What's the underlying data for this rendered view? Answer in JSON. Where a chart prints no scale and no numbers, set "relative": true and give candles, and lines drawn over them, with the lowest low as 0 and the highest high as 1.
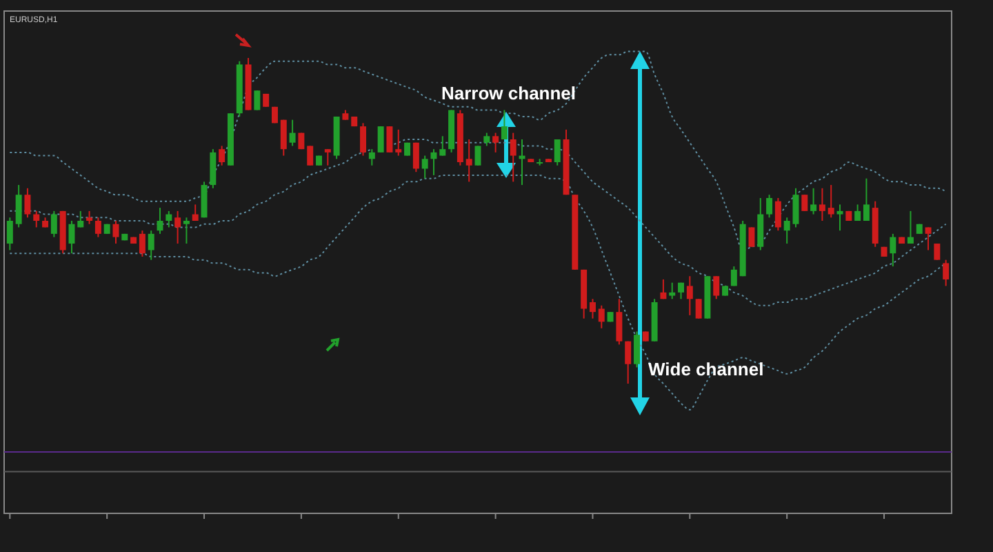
{
  "chart_data": {
    "type": "candlestick",
    "title": "EURUSD,H1",
    "relative": true,
    "legend": false,
    "grid": false,
    "line_style": "dotted",
    "categories": [
      null,
      null,
      null,
      null,
      null,
      null,
      null,
      null,
      null,
      null,
      null,
      null,
      null,
      null,
      null,
      null,
      null,
      null,
      null,
      null,
      null,
      null,
      null,
      null,
      null,
      null,
      null,
      null,
      null,
      null,
      null,
      null,
      null,
      null,
      null,
      null,
      null,
      null,
      null,
      null,
      null,
      null,
      null,
      null,
      null,
      null,
      null,
      null,
      null,
      null,
      null,
      null,
      null,
      null,
      null,
      null,
      null,
      null,
      null,
      null,
      null,
      null,
      null,
      null,
      null,
      null,
      null,
      null,
      null,
      null,
      null,
      null,
      null,
      null,
      null,
      null,
      null,
      null,
      null,
      null,
      null,
      null,
      null,
      null,
      null,
      null,
      null,
      null,
      null,
      null,
      null,
      null,
      null,
      null,
      null,
      null,
      null,
      null,
      null,
      null,
      null,
      null,
      null,
      null,
      null,
      null,
      null
    ],
    "ohlc": [
      [
        0.43,
        0.51,
        0.41,
        0.5
      ],
      [
        0.49,
        0.61,
        0.48,
        0.58
      ],
      [
        0.58,
        0.6,
        0.51,
        0.52
      ],
      [
        0.52,
        0.53,
        0.48,
        0.5
      ],
      [
        0.5,
        0.51,
        0.48,
        0.48
      ],
      [
        0.46,
        0.53,
        0.45,
        0.52
      ],
      [
        0.53,
        0.53,
        0.4,
        0.41
      ],
      [
        0.43,
        0.5,
        0.4,
        0.49
      ],
      [
        0.48,
        0.53,
        0.48,
        0.5
      ],
      [
        0.51,
        0.53,
        0.49,
        0.5
      ],
      [
        0.5,
        0.51,
        0.45,
        0.46
      ],
      [
        0.46,
        0.49,
        0.46,
        0.49
      ],
      [
        0.49,
        0.5,
        0.43,
        0.45
      ],
      [
        0.44,
        0.46,
        0.44,
        0.46
      ],
      [
        0.45,
        0.45,
        0.43,
        0.43
      ],
      [
        0.46,
        0.47,
        0.39,
        0.4
      ],
      [
        0.41,
        0.47,
        0.38,
        0.46
      ],
      [
        0.47,
        0.54,
        0.46,
        0.5
      ],
      [
        0.5,
        0.53,
        0.48,
        0.52
      ],
      [
        0.51,
        0.53,
        0.43,
        0.48
      ],
      [
        0.49,
        0.51,
        0.43,
        0.5
      ],
      [
        0.52,
        0.55,
        0.5,
        0.5
      ],
      [
        0.51,
        0.62,
        0.51,
        0.61
      ],
      [
        0.61,
        0.72,
        0.6,
        0.71
      ],
      [
        0.72,
        0.73,
        0.67,
        0.68
      ],
      [
        0.67,
        0.83,
        0.67,
        0.83
      ],
      [
        0.83,
        0.99,
        0.82,
        0.98
      ],
      [
        0.98,
        1.0,
        0.84,
        0.84
      ],
      [
        0.84,
        0.9,
        0.84,
        0.9
      ],
      [
        0.89,
        0.89,
        0.85,
        0.85
      ],
      [
        0.85,
        0.85,
        0.8,
        0.8
      ],
      [
        0.81,
        0.81,
        0.7,
        0.72
      ],
      [
        0.74,
        0.81,
        0.73,
        0.77
      ],
      [
        0.77,
        0.77,
        0.72,
        0.72
      ],
      [
        0.73,
        0.73,
        0.67,
        0.67
      ],
      [
        0.67,
        0.7,
        0.67,
        0.7
      ],
      [
        0.72,
        0.72,
        0.67,
        0.71
      ],
      [
        0.7,
        0.82,
        0.69,
        0.82
      ],
      [
        0.83,
        0.84,
        0.81,
        0.81
      ],
      [
        0.82,
        0.82,
        0.79,
        0.79
      ],
      [
        0.79,
        0.8,
        0.7,
        0.71
      ],
      [
        0.69,
        0.72,
        0.67,
        0.71
      ],
      [
        0.71,
        0.79,
        0.71,
        0.79
      ],
      [
        0.79,
        0.79,
        0.71,
        0.71
      ],
      [
        0.72,
        0.78,
        0.7,
        0.71
      ],
      [
        0.7,
        0.74,
        0.7,
        0.74
      ],
      [
        0.74,
        0.74,
        0.65,
        0.66
      ],
      [
        0.66,
        0.7,
        0.63,
        0.69
      ],
      [
        0.69,
        0.72,
        0.64,
        0.71
      ],
      [
        0.7,
        0.76,
        0.7,
        0.72
      ],
      [
        0.72,
        0.84,
        0.71,
        0.84
      ],
      [
        0.83,
        0.84,
        0.67,
        0.68
      ],
      [
        0.69,
        0.75,
        0.62,
        0.67
      ],
      [
        0.67,
        0.73,
        0.67,
        0.73
      ],
      [
        0.74,
        0.77,
        0.73,
        0.76
      ],
      [
        0.76,
        0.77,
        0.71,
        0.74
      ],
      [
        0.75,
        0.84,
        0.75,
        0.79
      ],
      [
        0.75,
        0.77,
        0.62,
        0.7
      ],
      [
        0.69,
        0.75,
        0.61,
        0.7
      ],
      [
        0.69,
        0.69,
        0.68,
        0.68
      ],
      [
        0.68,
        0.69,
        0.67,
        0.68
      ],
      [
        0.69,
        0.69,
        0.68,
        0.68
      ],
      [
        0.68,
        0.75,
        0.67,
        0.75
      ],
      [
        0.75,
        0.78,
        0.58,
        0.58
      ],
      [
        0.58,
        0.58,
        0.35,
        0.35
      ],
      [
        0.35,
        0.35,
        0.2,
        0.23
      ],
      [
        0.25,
        0.26,
        0.2,
        0.22
      ],
      [
        0.23,
        0.24,
        0.17,
        0.19
      ],
      [
        0.19,
        0.22,
        0.19,
        0.22
      ],
      [
        0.22,
        0.26,
        0.12,
        0.13
      ],
      [
        0.13,
        0.13,
        0.0,
        0.06
      ],
      [
        0.06,
        0.16,
        0.05,
        0.15
      ],
      [
        0.16,
        0.16,
        0.13,
        0.13
      ],
      [
        0.13,
        0.26,
        0.13,
        0.25
      ],
      [
        0.28,
        0.32,
        0.26,
        0.26
      ],
      [
        0.27,
        0.31,
        0.26,
        0.28
      ],
      [
        0.28,
        0.31,
        0.26,
        0.31
      ],
      [
        0.3,
        0.33,
        0.21,
        0.26
      ],
      [
        0.26,
        0.26,
        0.2,
        0.2
      ],
      [
        0.2,
        0.33,
        0.2,
        0.33
      ],
      [
        0.33,
        0.33,
        0.26,
        0.27
      ],
      [
        0.27,
        0.3,
        0.27,
        0.3
      ],
      [
        0.3,
        0.36,
        0.3,
        0.35
      ],
      [
        0.33,
        0.5,
        0.33,
        0.49
      ],
      [
        0.48,
        0.48,
        0.42,
        0.42
      ],
      [
        0.42,
        0.57,
        0.41,
        0.52
      ],
      [
        0.52,
        0.58,
        0.51,
        0.57
      ],
      [
        0.56,
        0.57,
        0.47,
        0.48
      ],
      [
        0.47,
        0.51,
        0.43,
        0.5
      ],
      [
        0.49,
        0.6,
        0.48,
        0.58
      ],
      [
        0.58,
        0.58,
        0.53,
        0.53
      ],
      [
        0.53,
        0.6,
        0.52,
        0.55
      ],
      [
        0.55,
        0.6,
        0.5,
        0.53
      ],
      [
        0.54,
        0.61,
        0.51,
        0.52
      ],
      [
        0.52,
        0.55,
        0.47,
        0.53
      ],
      [
        0.53,
        0.53,
        0.5,
        0.5
      ],
      [
        0.5,
        0.55,
        0.5,
        0.53
      ],
      [
        0.5,
        0.63,
        0.5,
        0.55
      ],
      [
        0.54,
        0.56,
        0.42,
        0.43
      ],
      [
        0.42,
        0.42,
        0.39,
        0.39
      ],
      [
        0.4,
        0.46,
        0.36,
        0.45
      ],
      [
        0.45,
        0.45,
        0.43,
        0.43
      ],
      [
        0.43,
        0.53,
        0.43,
        0.45
      ],
      [
        0.46,
        0.49,
        0.46,
        0.49
      ],
      [
        0.48,
        0.48,
        0.41,
        0.46
      ],
      [
        0.43,
        0.43,
        0.38,
        0.38
      ],
      [
        0.37,
        0.38,
        0.3,
        0.32
      ]
    ],
    "series": [
      {
        "type": "line",
        "color": "#5f8fa3",
        "values": [
          0.71,
          0.71,
          0.71,
          0.7,
          0.7,
          0.7,
          0.68,
          0.66,
          0.64,
          0.62,
          0.6,
          0.59,
          0.58,
          0.58,
          0.57,
          0.56,
          0.56,
          0.56,
          0.56,
          0.56,
          0.56,
          0.57,
          0.58,
          0.64,
          0.69,
          0.75,
          0.83,
          0.91,
          0.94,
          0.97,
          0.99,
          0.99,
          0.99,
          0.99,
          0.99,
          0.99,
          0.98,
          0.98,
          0.97,
          0.97,
          0.96,
          0.95,
          0.94,
          0.93,
          0.92,
          0.91,
          0.9,
          0.88,
          0.87,
          0.86,
          0.85,
          0.85,
          0.85,
          0.84,
          0.84,
          0.84,
          0.83,
          0.83,
          0.82,
          0.82,
          0.81,
          0.83,
          0.84,
          0.86,
          0.9,
          0.94,
          0.97,
          1.0,
          1.01,
          1.01,
          1.02,
          1.02,
          1.02,
          0.95,
          0.89,
          0.82,
          0.78,
          0.74,
          0.7,
          0.66,
          0.62,
          0.55,
          0.48,
          0.41,
          0.42,
          0.43,
          0.47,
          0.51,
          0.55,
          0.58,
          0.6,
          0.62,
          0.63,
          0.65,
          0.66,
          0.68,
          0.67,
          0.66,
          0.65,
          0.63,
          0.62,
          0.62,
          0.61,
          0.61,
          0.6,
          0.6,
          0.59
        ]
      },
      {
        "type": "line",
        "color": "#5f8fa3",
        "values": [
          0.53,
          0.53,
          0.53,
          0.53,
          0.52,
          0.52,
          0.52,
          0.52,
          0.51,
          0.51,
          0.51,
          0.51,
          0.5,
          0.5,
          0.5,
          0.5,
          0.49,
          0.49,
          0.49,
          0.48,
          0.48,
          0.48,
          0.49,
          0.49,
          0.5,
          0.5,
          0.52,
          0.53,
          0.55,
          0.56,
          0.58,
          0.59,
          0.61,
          0.62,
          0.64,
          0.65,
          0.66,
          0.67,
          0.68,
          0.7,
          0.71,
          0.72,
          null,
          0.73,
          0.74,
          0.75,
          0.75,
          0.75,
          0.74,
          0.74,
          0.74,
          0.74,
          0.74,
          0.74,
          0.74,
          0.74,
          0.74,
          0.74,
          0.73,
          0.73,
          0.73,
          0.72,
          0.72,
          0.71,
          0.68,
          0.65,
          0.62,
          0.6,
          0.58,
          0.56,
          0.54,
          0.51,
          0.48,
          0.45,
          0.42,
          0.39,
          0.37,
          0.36,
          0.34,
          0.33,
          0.31,
          0.3,
          0.28,
          0.27,
          0.25,
          0.24,
          0.24,
          0.25,
          0.25,
          0.26,
          0.26,
          0.27,
          0.28,
          0.29,
          0.3,
          0.31,
          0.32,
          0.33,
          0.34,
          0.36,
          0.37,
          0.39,
          0.41,
          0.43,
          0.45,
          0.47,
          0.49
        ]
      },
      {
        "type": "line",
        "color": "#5f8fa3",
        "values": [
          0.4,
          0.4,
          0.4,
          0.4,
          0.4,
          0.4,
          0.4,
          0.4,
          0.4,
          0.4,
          0.4,
          0.4,
          0.4,
          0.4,
          0.4,
          0.4,
          0.39,
          0.39,
          0.39,
          0.39,
          0.39,
          0.38,
          0.38,
          0.37,
          0.37,
          0.36,
          0.35,
          0.35,
          0.34,
          0.34,
          0.33,
          0.34,
          0.35,
          0.36,
          0.38,
          0.39,
          0.42,
          0.45,
          0.48,
          0.51,
          0.54,
          0.56,
          0.57,
          0.59,
          0.6,
          0.62,
          0.62,
          0.63,
          0.63,
          0.64,
          0.64,
          0.64,
          0.64,
          0.64,
          0.64,
          0.64,
          0.64,
          0.64,
          0.64,
          0.64,
          0.64,
          0.63,
          0.63,
          0.62,
          0.57,
          0.53,
          0.48,
          0.41,
          0.34,
          0.27,
          0.2,
          0.14,
          0.09,
          0.03,
          0.0,
          -0.03,
          -0.06,
          -0.08,
          -0.04,
          0.01,
          0.05,
          0.06,
          0.07,
          0.08,
          0.07,
          0.06,
          0.05,
          0.04,
          0.03,
          0.04,
          0.05,
          0.08,
          0.1,
          0.13,
          0.16,
          0.18,
          0.2,
          0.21,
          0.23,
          0.24,
          0.26,
          0.28,
          0.3,
          0.32,
          0.33,
          0.35,
          0.37
        ]
      }
    ],
    "ref_lines": [
      {
        "axis": "y",
        "value": -0.21,
        "color": "#5a2a8c"
      },
      {
        "axis": "y",
        "value": -0.27,
        "color": "#5a5a5a"
      }
    ],
    "annotations": [
      "Narrow channel",
      "Wide channel"
    ]
  }
}
